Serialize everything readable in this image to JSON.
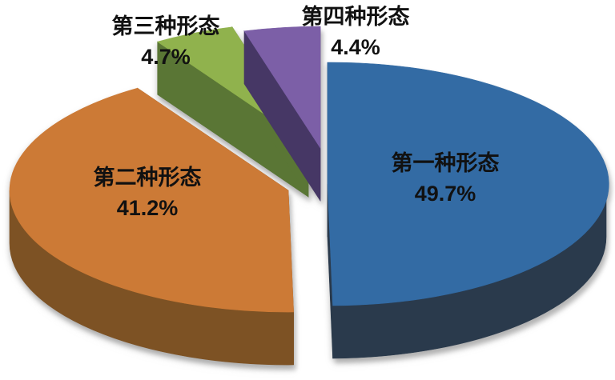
{
  "chart_data": {
    "type": "pie",
    "style": "3d_exploded_pie",
    "title": "",
    "legend": "none",
    "direction": "clockwise",
    "start_angle_deg": 0,
    "background": "#FFFFFF",
    "label_text_color": "#111111",
    "percent_labels_shown": true,
    "series": [
      {
        "label": "第一种形态",
        "value": 49.7,
        "pct_label": "49.7%",
        "color_top": "#336BA4",
        "color_side": "#2A3A4C"
      },
      {
        "label": "第二种形态",
        "value": 41.2,
        "pct_label": "41.2%",
        "color_top": "#CC7A36",
        "color_side": "#7D5224"
      },
      {
        "label": "第三种形态",
        "value": 4.7,
        "pct_label": "4.7%",
        "color_top": "#90B24D",
        "color_side": "#5A7635"
      },
      {
        "label": "第四种形态",
        "value": 4.4,
        "pct_label": "4.4%",
        "color_top": "#7C5FA7",
        "color_side": "#463765"
      }
    ]
  }
}
